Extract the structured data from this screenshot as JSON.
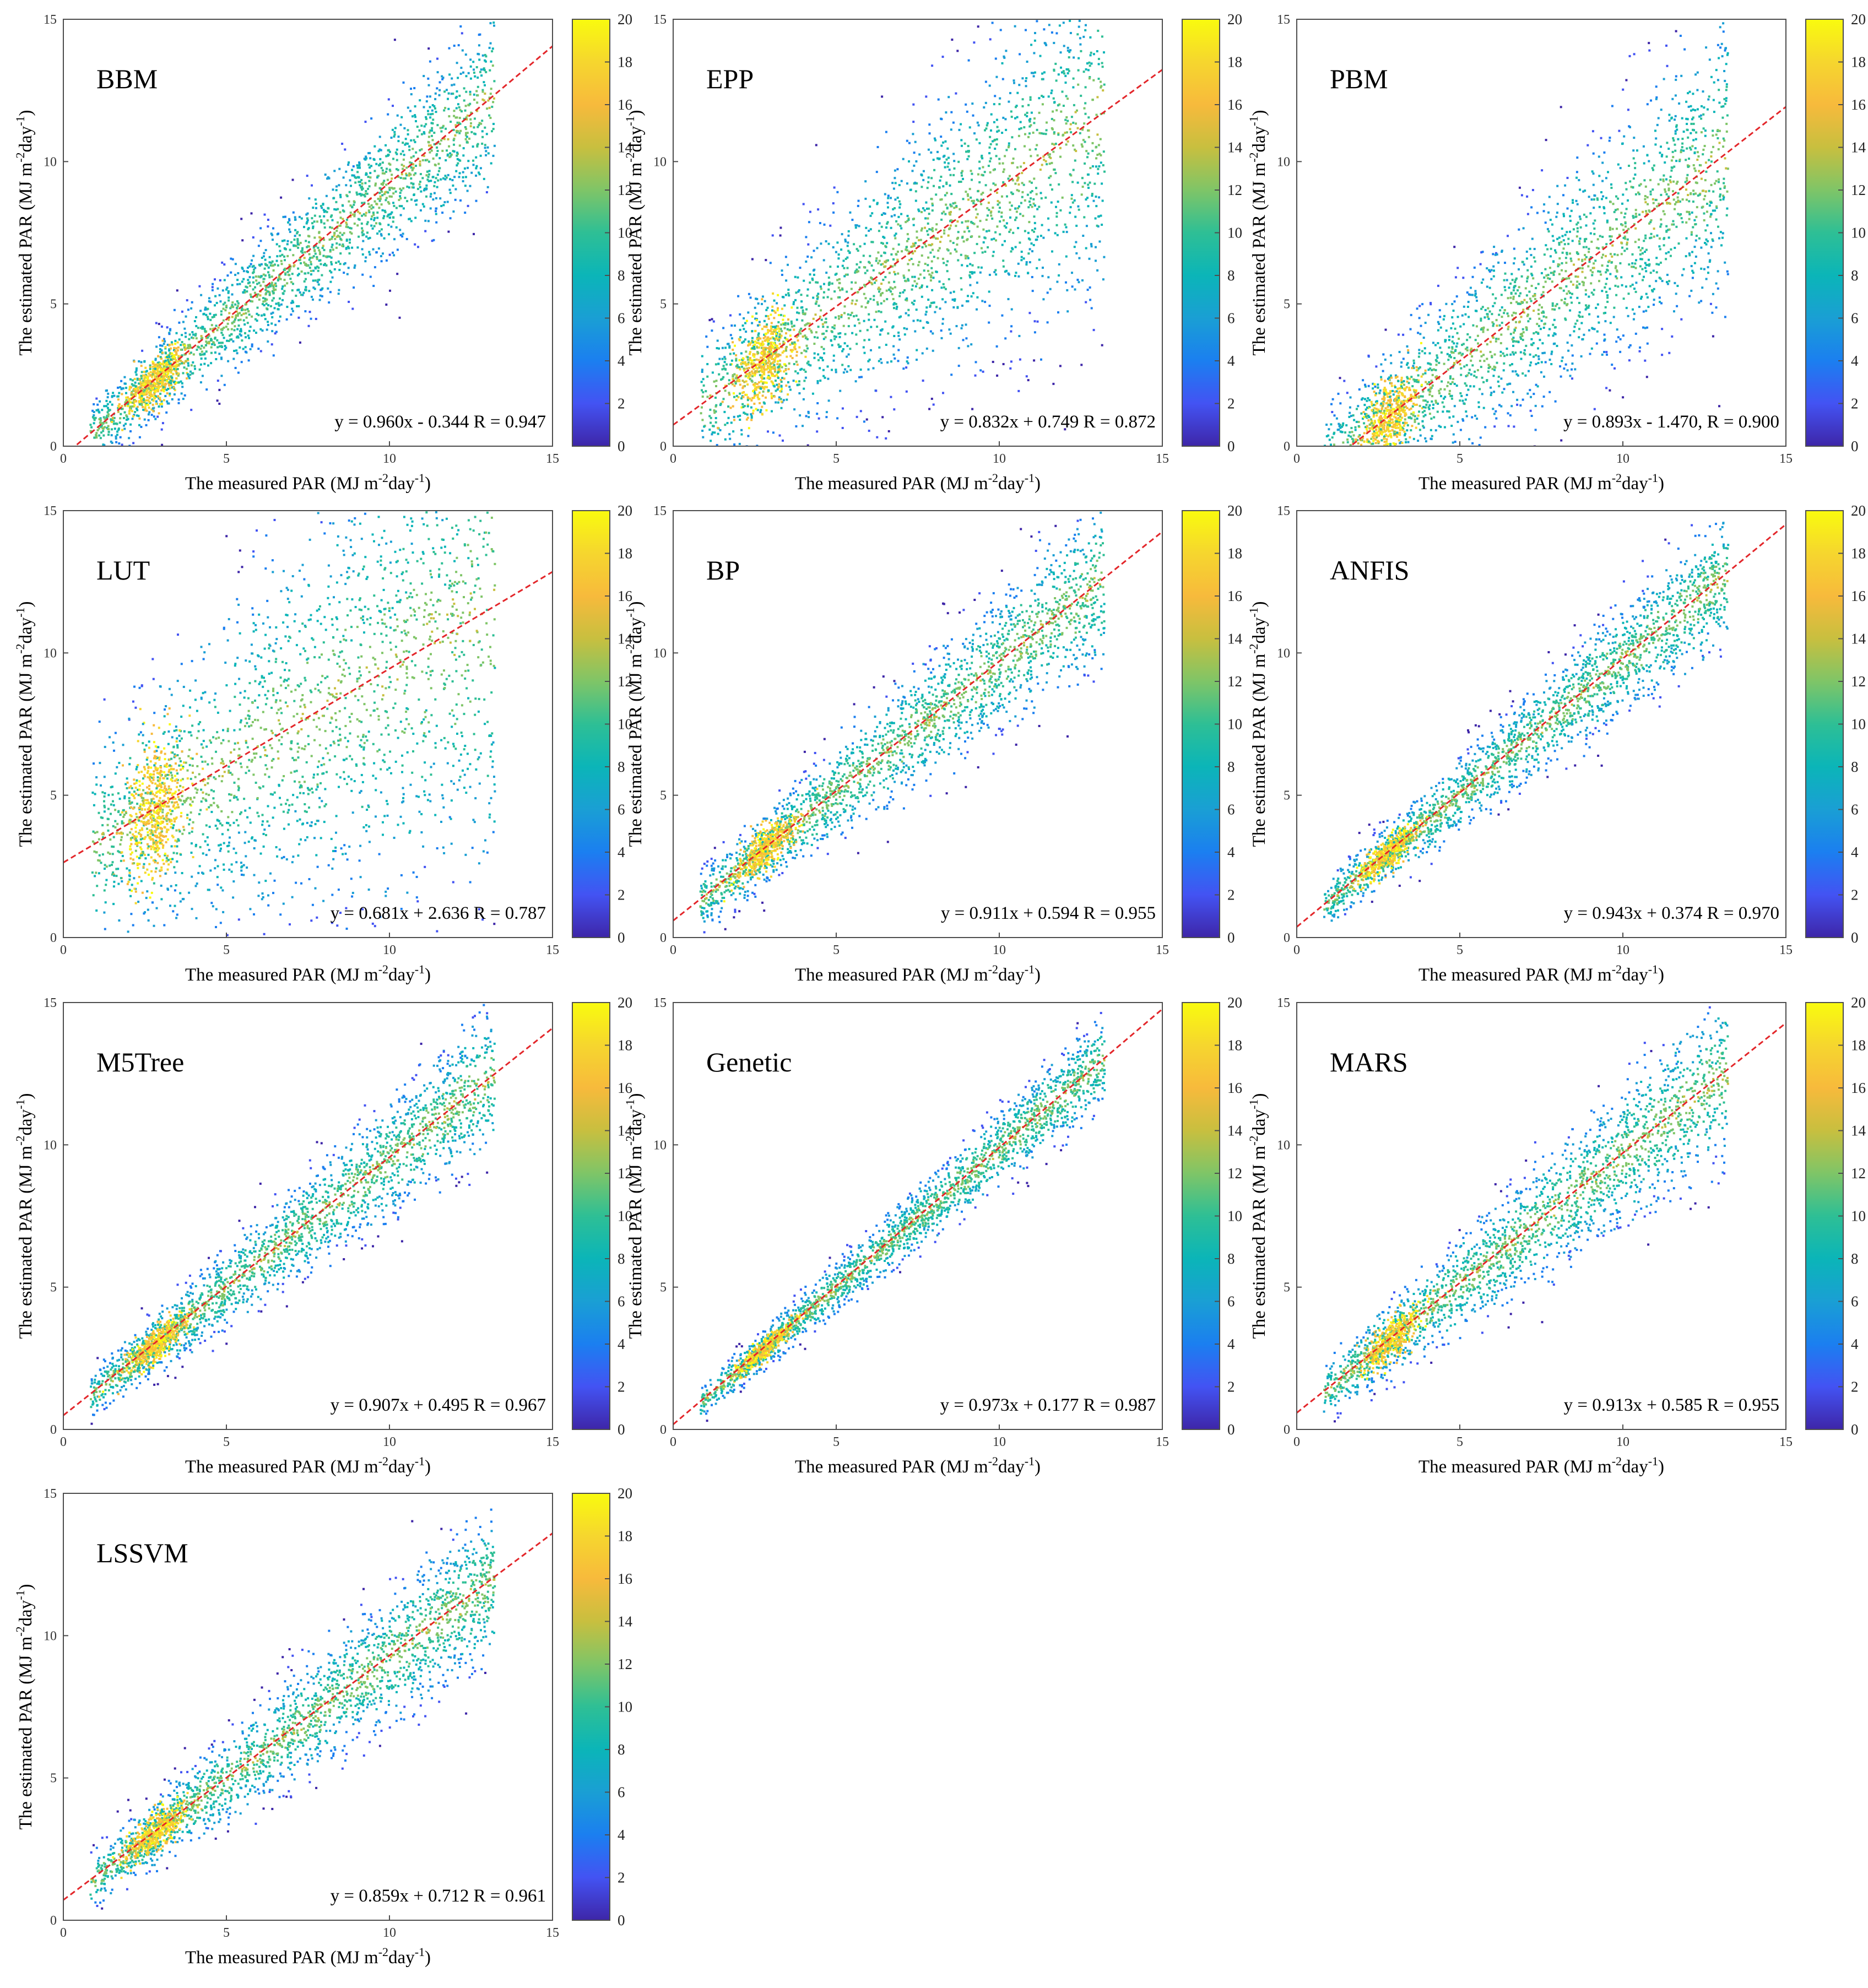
{
  "figure": {
    "colorbar": {
      "min": 0,
      "max": 20,
      "ticks": [
        "0",
        "2",
        "4",
        "6",
        "8",
        "10",
        "12",
        "14",
        "16",
        "18",
        "20"
      ],
      "colormap": [
        "#3e26a8",
        "#4353f3",
        "#1b7ff0",
        "#1a9fd4",
        "#0bb5b8",
        "#2ebf95",
        "#7fc567",
        "#c8bf3f",
        "#f7ba3c",
        "#f6d62e",
        "#f9fb0e"
      ]
    },
    "fit_line_color": "#e3262a",
    "axis_color": "#4d4d4d"
  },
  "chart_data": [
    {
      "type": "scatter",
      "label": "BBM",
      "xlabel": "The measured PAR (MJ m",
      "xlabel_sup": "-2",
      "xlabel_tail": "day",
      "xlabel_tail_sup": "-1",
      "xlabel_end": ")",
      "ylabel": "The estimated PAR (MJ m",
      "ylabel_sup": "-2",
      "ylabel_tail": "day",
      "ylabel_tail_sup": "-1",
      "ylabel_end": ")",
      "xlim": [
        0,
        15
      ],
      "ylim": [
        0,
        15
      ],
      "xticks": [
        "0",
        "5",
        "10",
        "15"
      ],
      "yticks": [
        "0",
        "5",
        "10",
        "15"
      ],
      "fit": {
        "slope": 0.96,
        "intercept": -0.344,
        "r": 0.947
      },
      "equation": "y = 0.960x - 0.344   R = 0.947"
    },
    {
      "type": "scatter",
      "label": "EPP",
      "xlabel": "The measured PAR (MJ m",
      "xlabel_sup": "-2",
      "xlabel_tail": "day",
      "xlabel_tail_sup": "-1",
      "xlabel_end": ")",
      "ylabel": "The estimated PAR (MJ m",
      "ylabel_sup": "-2",
      "ylabel_tail": "day",
      "ylabel_tail_sup": "-1",
      "ylabel_end": ")",
      "xlim": [
        0,
        15
      ],
      "ylim": [
        0,
        15
      ],
      "xticks": [
        "0",
        "5",
        "10",
        "15"
      ],
      "yticks": [
        "0",
        "5",
        "10",
        "15"
      ],
      "fit": {
        "slope": 0.832,
        "intercept": 0.749,
        "r": 0.872
      },
      "equation": "y = 0.832x + 0.749   R = 0.872"
    },
    {
      "type": "scatter",
      "label": "PBM",
      "xlabel": "The measured PAR (MJ m",
      "xlabel_sup": "-2",
      "xlabel_tail": "day",
      "xlabel_tail_sup": "-1",
      "xlabel_end": ")",
      "ylabel": "The estimated PAR (MJ m",
      "ylabel_sup": "-2",
      "ylabel_tail": "day",
      "ylabel_tail_sup": "-1",
      "ylabel_end": ")",
      "xlim": [
        0,
        15
      ],
      "ylim": [
        0,
        15
      ],
      "xticks": [
        "0",
        "5",
        "10",
        "15"
      ],
      "yticks": [
        "0",
        "5",
        "10",
        "15"
      ],
      "fit": {
        "slope": 0.893,
        "intercept": -1.47,
        "r": 0.9
      },
      "equation": "y = 0.893x - 1.470,  R = 0.900"
    },
    {
      "type": "scatter",
      "label": "LUT",
      "xlabel": "The measured PAR (MJ m",
      "xlabel_sup": "-2",
      "xlabel_tail": "day",
      "xlabel_tail_sup": "-1",
      "xlabel_end": ")",
      "ylabel": "The estimated PAR (MJ m",
      "ylabel_sup": "-2",
      "ylabel_tail": "day",
      "ylabel_tail_sup": "-1",
      "ylabel_end": ")",
      "xlim": [
        0,
        15
      ],
      "ylim": [
        0,
        15
      ],
      "xticks": [
        "0",
        "5",
        "10",
        "15"
      ],
      "yticks": [
        "0",
        "5",
        "10",
        "15"
      ],
      "fit": {
        "slope": 0.681,
        "intercept": 2.636,
        "r": 0.787
      },
      "equation": "y = 0.681x + 2.636   R = 0.787"
    },
    {
      "type": "scatter",
      "label": "BP",
      "xlabel": "The measured PAR (MJ m",
      "xlabel_sup": "-2",
      "xlabel_tail": "day",
      "xlabel_tail_sup": "-1",
      "xlabel_end": ")",
      "ylabel": "The estimated PAR (MJ m",
      "ylabel_sup": "-2",
      "ylabel_tail": "day",
      "ylabel_tail_sup": "-1",
      "ylabel_end": ")",
      "xlim": [
        0,
        15
      ],
      "ylim": [
        0,
        15
      ],
      "xticks": [
        "0",
        "5",
        "10",
        "15"
      ],
      "yticks": [
        "0",
        "5",
        "10",
        "15"
      ],
      "fit": {
        "slope": 0.911,
        "intercept": 0.594,
        "r": 0.955
      },
      "equation": "y = 0.911x + 0.594   R = 0.955"
    },
    {
      "type": "scatter",
      "label": "ANFIS",
      "xlabel": "The measured PAR (MJ m",
      "xlabel_sup": "-2",
      "xlabel_tail": "day",
      "xlabel_tail_sup": "-1",
      "xlabel_end": ")",
      "ylabel": "The estimated PAR (MJ m",
      "ylabel_sup": "-2",
      "ylabel_tail": "day",
      "ylabel_tail_sup": "-1",
      "ylabel_end": ")",
      "xlim": [
        0,
        15
      ],
      "ylim": [
        0,
        15
      ],
      "xticks": [
        "0",
        "5",
        "10",
        "15"
      ],
      "yticks": [
        "0",
        "5",
        "10",
        "15"
      ],
      "fit": {
        "slope": 0.943,
        "intercept": 0.374,
        "r": 0.97
      },
      "equation": "y = 0.943x + 0.374   R = 0.970"
    },
    {
      "type": "scatter",
      "label": "M5Tree",
      "xlabel": "The measured PAR (MJ m",
      "xlabel_sup": "-2",
      "xlabel_tail": "day",
      "xlabel_tail_sup": "-1",
      "xlabel_end": ")",
      "ylabel": "The estimated PAR (MJ m",
      "ylabel_sup": "-2",
      "ylabel_tail": "day",
      "ylabel_tail_sup": "-1",
      "ylabel_end": ")",
      "xlim": [
        0,
        15
      ],
      "ylim": [
        0,
        15
      ],
      "xticks": [
        "0",
        "5",
        "10",
        "15"
      ],
      "yticks": [
        "0",
        "5",
        "10",
        "15"
      ],
      "fit": {
        "slope": 0.907,
        "intercept": 0.495,
        "r": 0.967
      },
      "equation": "y = 0.907x + 0.495   R = 0.967"
    },
    {
      "type": "scatter",
      "label": "Genetic",
      "xlabel": "The measured PAR (MJ m",
      "xlabel_sup": "-2",
      "xlabel_tail": "day",
      "xlabel_tail_sup": "-1",
      "xlabel_end": ")",
      "ylabel": "The estimated PAR (MJ m",
      "ylabel_sup": "-2",
      "ylabel_tail": "day",
      "ylabel_tail_sup": "-1",
      "ylabel_end": ")",
      "xlim": [
        0,
        15
      ],
      "ylim": [
        0,
        15
      ],
      "xticks": [
        "0",
        "5",
        "10",
        "15"
      ],
      "yticks": [
        "0",
        "5",
        "10",
        "15"
      ],
      "fit": {
        "slope": 0.973,
        "intercept": 0.177,
        "r": 0.987
      },
      "equation": "y = 0.973x + 0.177   R = 0.987"
    },
    {
      "type": "scatter",
      "label": "MARS",
      "xlabel": "The measured PAR (MJ m",
      "xlabel_sup": "-2",
      "xlabel_tail": "day",
      "xlabel_tail_sup": "-1",
      "xlabel_end": ")",
      "ylabel": "The estimated PAR (MJ m",
      "ylabel_sup": "-2",
      "ylabel_tail": "day",
      "ylabel_tail_sup": "-1",
      "ylabel_end": ")",
      "xlim": [
        0,
        15
      ],
      "ylim": [
        0,
        15
      ],
      "xticks": [
        "0",
        "5",
        "10",
        "15"
      ],
      "yticks": [
        "0",
        "5",
        "10",
        "15"
      ],
      "fit": {
        "slope": 0.913,
        "intercept": 0.585,
        "r": 0.955
      },
      "equation": "y = 0.913x + 0.585   R = 0.955"
    },
    {
      "type": "scatter",
      "label": "LSSVM",
      "xlabel": "The measured PAR (MJ m",
      "xlabel_sup": "-2",
      "xlabel_tail": "day",
      "xlabel_tail_sup": "-1",
      "xlabel_end": ")",
      "ylabel": "The estimated PAR (MJ m",
      "ylabel_sup": "-2",
      "ylabel_tail": "day",
      "ylabel_tail_sup": "-1",
      "ylabel_end": ")",
      "xlim": [
        0,
        15
      ],
      "ylim": [
        0,
        15
      ],
      "xticks": [
        "0",
        "5",
        "10",
        "15"
      ],
      "yticks": [
        "0",
        "5",
        "10",
        "15"
      ],
      "fit": {
        "slope": 0.859,
        "intercept": 0.712,
        "r": 0.961
      },
      "equation": "y = 0.859x + 0.712   R = 0.961"
    }
  ]
}
